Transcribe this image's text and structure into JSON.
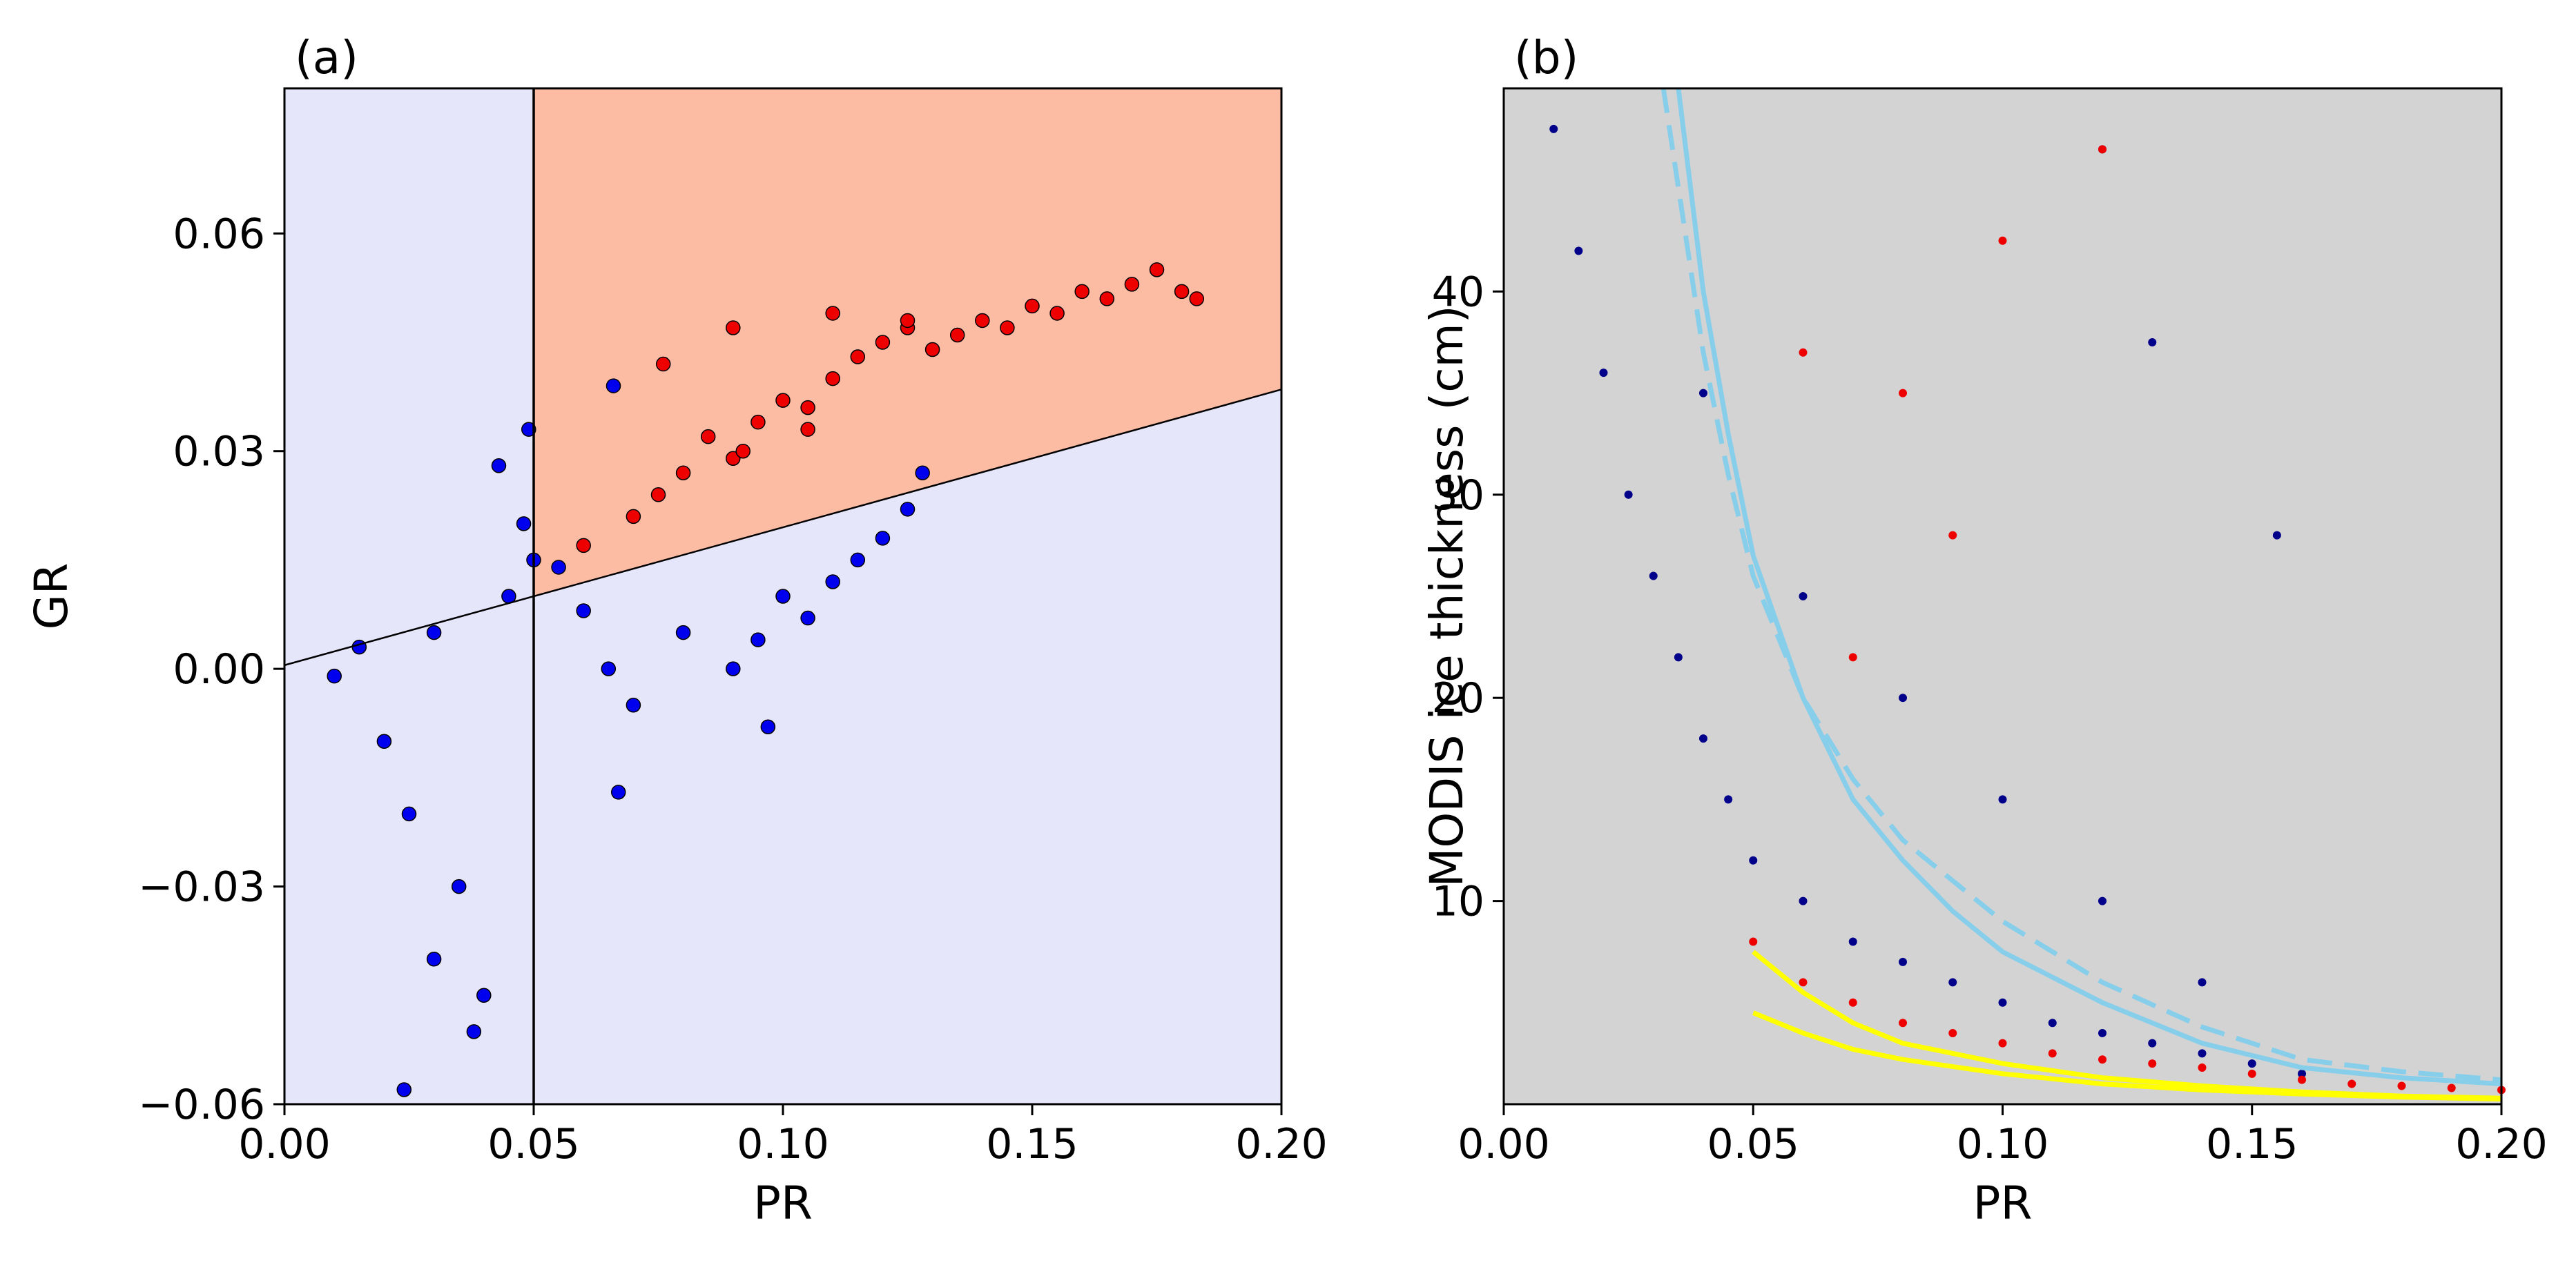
{
  "chart_data": [
    {
      "panel_label": "(a)",
      "type": "scatter",
      "xlabel": "PR",
      "ylabel": "GR",
      "xlim": [
        0.0,
        0.2
      ],
      "ylim": [
        -0.06,
        0.08
      ],
      "xticks": [
        {
          "value": 0.0,
          "label": "0.00"
        },
        {
          "value": 0.05,
          "label": "0.05"
        },
        {
          "value": 0.1,
          "label": "0.10"
        },
        {
          "value": 0.15,
          "label": "0.15"
        },
        {
          "value": 0.2,
          "label": "0.20"
        }
      ],
      "yticks": [
        {
          "value": -0.06,
          "label": "−0.06"
        },
        {
          "value": -0.03,
          "label": "−0.03"
        },
        {
          "value": 0.0,
          "label": "0.00"
        },
        {
          "value": 0.03,
          "label": "0.03"
        },
        {
          "value": 0.06,
          "label": "0.06"
        }
      ],
      "regions": [
        {
          "name": "outside",
          "color": "#e6e6fa"
        },
        {
          "name": "selected",
          "color": "#fcbca4",
          "x_min": 0.05,
          "above_line": true
        }
      ],
      "lines": [
        {
          "type": "vertical",
          "x": 0.05,
          "color": "#000000"
        },
        {
          "type": "linear",
          "slope": 0.19,
          "intercept": 0.0005,
          "color": "#000000"
        }
      ],
      "series": [
        {
          "name": "Red points (thin ice)",
          "color": "#ee0000",
          "points": [
            [
              0.06,
              0.017
            ],
            [
              0.07,
              0.021
            ],
            [
              0.075,
              0.024
            ],
            [
              0.08,
              0.027
            ],
            [
              0.085,
              0.032
            ],
            [
              0.09,
              0.029
            ],
            [
              0.095,
              0.034
            ],
            [
              0.1,
              0.037
            ],
            [
              0.105,
              0.036
            ],
            [
              0.11,
              0.04
            ],
            [
              0.115,
              0.043
            ],
            [
              0.12,
              0.045
            ],
            [
              0.125,
              0.047
            ],
            [
              0.13,
              0.044
            ],
            [
              0.135,
              0.046
            ],
            [
              0.14,
              0.048
            ],
            [
              0.145,
              0.047
            ],
            [
              0.15,
              0.05
            ],
            [
              0.155,
              0.049
            ],
            [
              0.16,
              0.052
            ],
            [
              0.165,
              0.051
            ],
            [
              0.17,
              0.053
            ],
            [
              0.175,
              0.055
            ],
            [
              0.18,
              0.052
            ],
            [
              0.183,
              0.051
            ],
            [
              0.076,
              0.042
            ],
            [
              0.09,
              0.047
            ],
            [
              0.11,
              0.049
            ],
            [
              0.125,
              0.048
            ],
            [
              0.092,
              0.03
            ],
            [
              0.105,
              0.033
            ]
          ]
        },
        {
          "name": "Blue points",
          "color": "#0000ee",
          "points": [
            [
              0.01,
              -0.001
            ],
            [
              0.015,
              0.003
            ],
            [
              0.02,
              -0.01
            ],
            [
              0.025,
              -0.02
            ],
            [
              0.03,
              0.005
            ],
            [
              0.035,
              -0.03
            ],
            [
              0.04,
              -0.045
            ],
            [
              0.038,
              -0.05
            ],
            [
              0.03,
              -0.04
            ],
            [
              0.024,
              -0.058
            ],
            [
              0.045,
              0.01
            ],
            [
              0.048,
              0.02
            ],
            [
              0.05,
              0.015
            ],
            [
              0.055,
              0.014
            ],
            [
              0.06,
              0.008
            ],
            [
              0.065,
              0.0
            ],
            [
              0.07,
              -0.005
            ],
            [
              0.067,
              -0.017
            ],
            [
              0.08,
              0.005
            ],
            [
              0.09,
              0.0
            ],
            [
              0.095,
              0.004
            ],
            [
              0.1,
              0.01
            ],
            [
              0.105,
              0.007
            ],
            [
              0.11,
              0.012
            ],
            [
              0.115,
              0.015
            ],
            [
              0.12,
              0.018
            ],
            [
              0.125,
              0.022
            ],
            [
              0.128,
              0.027
            ],
            [
              0.066,
              0.039
            ],
            [
              0.049,
              0.033
            ],
            [
              0.043,
              0.028
            ],
            [
              0.097,
              -0.008
            ]
          ]
        }
      ]
    },
    {
      "panel_label": "(b)",
      "type": "scatter",
      "xlabel": "PR",
      "ylabel": "MODIS ice thickness (cm)",
      "xlim": [
        0.0,
        0.2
      ],
      "ylim": [
        0.0,
        50.0
      ],
      "background": "#d3d3d3",
      "xticks": [
        {
          "value": 0.0,
          "label": "0.00"
        },
        {
          "value": 0.05,
          "label": "0.05"
        },
        {
          "value": 0.1,
          "label": "0.10"
        },
        {
          "value": 0.15,
          "label": "0.15"
        },
        {
          "value": 0.2,
          "label": "0.20"
        }
      ],
      "yticks": [
        {
          "value": 10,
          "label": "10"
        },
        {
          "value": 20,
          "label": "20"
        },
        {
          "value": 30,
          "label": "30"
        },
        {
          "value": 40,
          "label": "40"
        }
      ],
      "series": [
        {
          "name": "MODIS thickness (navy)",
          "color": "#00008b",
          "points": [
            [
              0.01,
              48
            ],
            [
              0.015,
              42
            ],
            [
              0.02,
              36
            ],
            [
              0.025,
              30
            ],
            [
              0.03,
              26
            ],
            [
              0.035,
              22
            ],
            [
              0.04,
              18
            ],
            [
              0.045,
              15
            ],
            [
              0.05,
              12
            ],
            [
              0.06,
              10
            ],
            [
              0.07,
              8
            ],
            [
              0.08,
              7
            ],
            [
              0.09,
              6
            ],
            [
              0.1,
              5
            ],
            [
              0.11,
              4
            ],
            [
              0.12,
              3.5
            ],
            [
              0.13,
              3
            ],
            [
              0.14,
              2.5
            ],
            [
              0.15,
              2
            ],
            [
              0.16,
              1.5
            ],
            [
              0.04,
              35
            ],
            [
              0.06,
              25
            ],
            [
              0.08,
              20
            ],
            [
              0.1,
              15
            ],
            [
              0.12,
              10
            ],
            [
              0.14,
              6
            ],
            [
              0.13,
              37.5
            ],
            [
              0.155,
              28
            ],
            [
              0.12,
              47
            ]
          ]
        },
        {
          "name": "Thin ice (red)",
          "color": "#ee0000",
          "points": [
            [
              0.05,
              8
            ],
            [
              0.06,
              6
            ],
            [
              0.07,
              5
            ],
            [
              0.08,
              4
            ],
            [
              0.09,
              3.5
            ],
            [
              0.1,
              3
            ],
            [
              0.11,
              2.5
            ],
            [
              0.12,
              2.2
            ],
            [
              0.13,
              2
            ],
            [
              0.14,
              1.8
            ],
            [
              0.15,
              1.5
            ],
            [
              0.16,
              1.2
            ],
            [
              0.17,
              1.0
            ],
            [
              0.18,
              0.9
            ],
            [
              0.19,
              0.8
            ],
            [
              0.2,
              0.7
            ],
            [
              0.1,
              42.5
            ],
            [
              0.12,
              47
            ],
            [
              0.08,
              35
            ],
            [
              0.09,
              28
            ],
            [
              0.06,
              37
            ],
            [
              0.07,
              22
            ]
          ]
        }
      ],
      "curves": [
        {
          "name": "fit-1 solid",
          "color": "#87ceeb",
          "style": "solid",
          "x": [
            0.035,
            0.04,
            0.045,
            0.05,
            0.06,
            0.07,
            0.08,
            0.09,
            0.1,
            0.12,
            0.14,
            0.16,
            0.18,
            0.2
          ],
          "y": [
            50,
            40,
            33,
            27,
            20,
            15,
            12,
            9.5,
            7.5,
            5,
            3,
            1.8,
            1.3,
            1
          ]
        },
        {
          "name": "fit-2 dashed",
          "color": "#87ceeb",
          "style": "dashed",
          "x": [
            0.032,
            0.04,
            0.045,
            0.05,
            0.06,
            0.07,
            0.08,
            0.09,
            0.1,
            0.12,
            0.14,
            0.16,
            0.18,
            0.2
          ],
          "y": [
            50,
            37,
            31,
            26,
            20,
            16,
            13,
            11,
            9,
            6,
            3.8,
            2.2,
            1.6,
            1.2
          ]
        },
        {
          "name": "fit-3 yellow",
          "color": "#ffff00",
          "style": "solid",
          "x": [
            0.05,
            0.06,
            0.07,
            0.08,
            0.1,
            0.12,
            0.14,
            0.16,
            0.18,
            0.2
          ],
          "y": [
            7.5,
            5.5,
            4.0,
            3.0,
            2.0,
            1.3,
            0.9,
            0.6,
            0.4,
            0.3
          ]
        },
        {
          "name": "fit-4 yellow",
          "color": "#ffff00",
          "style": "solid",
          "x": [
            0.05,
            0.06,
            0.07,
            0.08,
            0.1,
            0.12,
            0.14,
            0.16,
            0.18,
            0.2
          ],
          "y": [
            4.5,
            3.5,
            2.7,
            2.2,
            1.5,
            1.0,
            0.7,
            0.5,
            0.35,
            0.25
          ]
        }
      ]
    }
  ]
}
